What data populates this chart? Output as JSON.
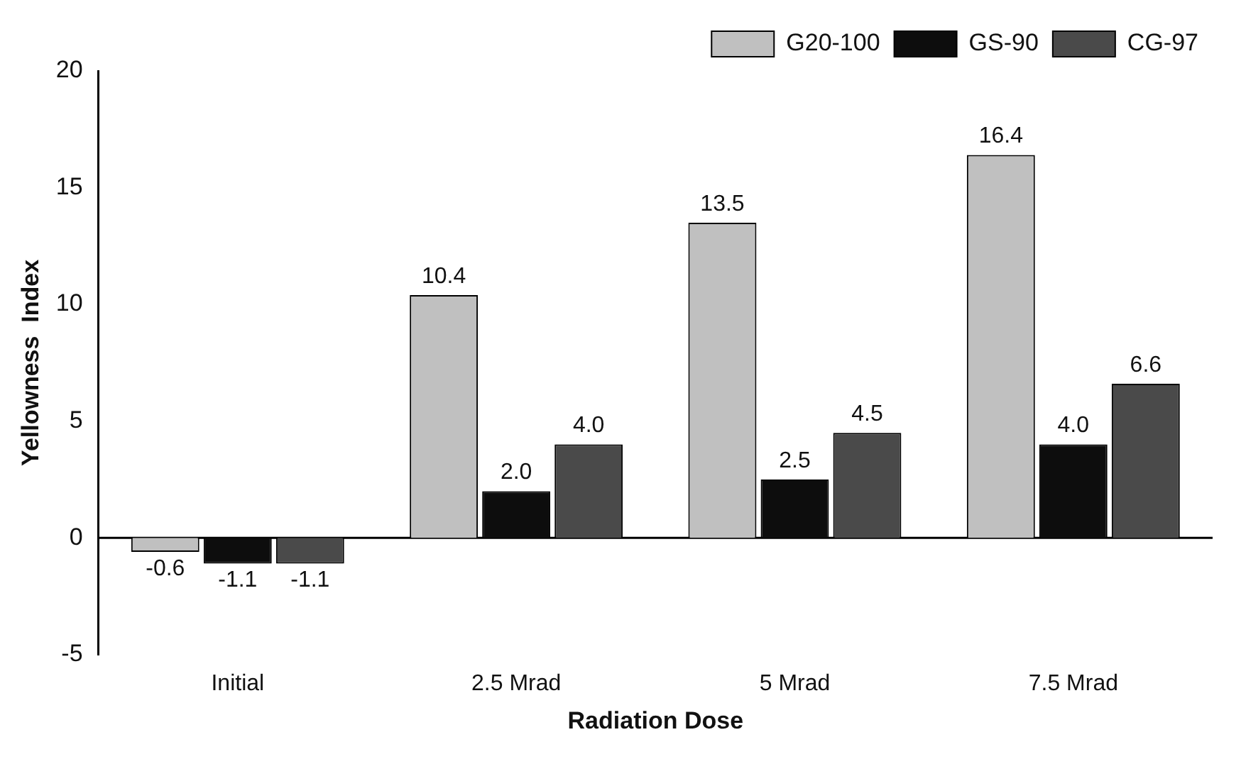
{
  "chart_data": {
    "type": "bar",
    "xlabel": "Radiation Dose",
    "ylabel": "Yellowness  Index",
    "categories": [
      "Initial",
      "2.5 Mrad",
      "5 Mrad",
      "7.5 Mrad"
    ],
    "series": [
      {
        "name": "G20-100",
        "color": "#c0c0c0",
        "values": [
          -0.6,
          10.4,
          13.5,
          16.4
        ],
        "value_labels": [
          "-0.6",
          "10.4",
          "13.5",
          "16.4"
        ]
      },
      {
        "name": "GS-90",
        "color": "#0d0d0d",
        "values": [
          -1.1,
          2.0,
          2.5,
          4.0
        ],
        "value_labels": [
          "-1.1",
          "2.0",
          "2.5",
          "4.0"
        ]
      },
      {
        "name": "CG-97",
        "color": "#4a4a4a",
        "values": [
          -1.1,
          4.0,
          4.5,
          6.6
        ],
        "value_labels": [
          "-1.1",
          "4.0",
          "4.5",
          "6.6"
        ]
      }
    ],
    "ylim": [
      -5,
      20
    ],
    "yticks": [
      -5,
      0,
      5,
      10,
      15,
      20
    ],
    "ref_lines": [
      {
        "axis": "y",
        "value": 0
      }
    ],
    "legend": "top right",
    "grid": false
  }
}
